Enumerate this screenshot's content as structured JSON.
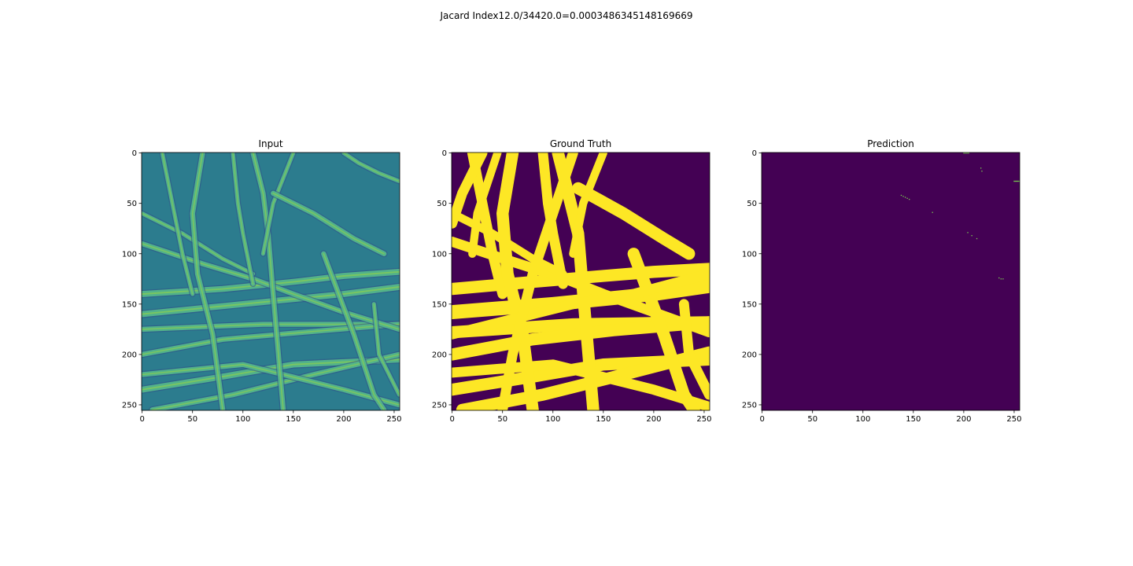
{
  "figure": {
    "suptitle": "Jacard Index12.0/34420.0=0.0003486345148169669"
  },
  "colormap": {
    "name": "viridis",
    "low": "#440154",
    "mid": "#21918c",
    "high": "#fde725"
  },
  "chart_data": [
    {
      "type": "heatmap",
      "title": "Input",
      "xlabel": "",
      "ylabel": "",
      "xlim": [
        0,
        255
      ],
      "ylim": [
        255,
        0
      ],
      "xticks": [
        0,
        50,
        100,
        150,
        200,
        250
      ],
      "yticks": [
        0,
        50,
        100,
        150,
        200,
        250
      ],
      "background": "#2c7c8e",
      "fibers": [
        {
          "points": [
            [
              0,
              140
            ],
            [
              80,
              135
            ],
            [
              150,
              128
            ],
            [
              200,
              122
            ],
            [
              255,
              118
            ]
          ],
          "width": 6
        },
        {
          "points": [
            [
              0,
              160
            ],
            [
              100,
              150
            ],
            [
              200,
              140
            ],
            [
              255,
              133
            ]
          ],
          "width": 6
        },
        {
          "points": [
            [
              0,
              175
            ],
            [
              120,
              170
            ],
            [
              255,
              170
            ]
          ],
          "width": 5
        },
        {
          "points": [
            [
              0,
              200
            ],
            [
              80,
              185
            ],
            [
              160,
              178
            ],
            [
              255,
              170
            ]
          ],
          "width": 5
        },
        {
          "points": [
            [
              0,
              235
            ],
            [
              80,
              222
            ],
            [
              150,
              210
            ],
            [
              255,
              205
            ]
          ],
          "width": 6
        },
        {
          "points": [
            [
              10,
              255
            ],
            [
              90,
              240
            ],
            [
              170,
              220
            ],
            [
              255,
              200
            ]
          ],
          "width": 5
        },
        {
          "points": [
            [
              0,
              220
            ],
            [
              100,
              210
            ],
            [
              200,
              235
            ],
            [
              255,
              250
            ]
          ],
          "width": 5
        },
        {
          "points": [
            [
              0,
              90
            ],
            [
              60,
              110
            ],
            [
              110,
              125
            ],
            [
              150,
              140
            ],
            [
              200,
              158
            ],
            [
              255,
              175
            ]
          ],
          "width": 5
        },
        {
          "points": [
            [
              0,
              60
            ],
            [
              40,
              80
            ],
            [
              80,
              105
            ],
            [
              110,
              120
            ]
          ],
          "width": 4
        },
        {
          "points": [
            [
              20,
              0
            ],
            [
              30,
              50
            ],
            [
              40,
              100
            ],
            [
              50,
              140
            ]
          ],
          "width": 4
        },
        {
          "points": [
            [
              60,
              0
            ],
            [
              50,
              60
            ],
            [
              55,
              120
            ],
            [
              70,
              180
            ],
            [
              80,
              255
            ]
          ],
          "width": 5
        },
        {
          "points": [
            [
              110,
              0
            ],
            [
              120,
              40
            ],
            [
              125,
              80
            ],
            [
              130,
              140
            ],
            [
              140,
              255
            ]
          ],
          "width": 5
        },
        {
          "points": [
            [
              150,
              0
            ],
            [
              130,
              50
            ],
            [
              120,
              100
            ]
          ],
          "width": 4
        },
        {
          "points": [
            [
              130,
              40
            ],
            [
              170,
              60
            ],
            [
              210,
              85
            ],
            [
              240,
              100
            ]
          ],
          "width": 5
        },
        {
          "points": [
            [
              180,
              100
            ],
            [
              210,
              180
            ],
            [
              230,
              240
            ],
            [
              240,
              255
            ]
          ],
          "width": 5
        },
        {
          "points": [
            [
              230,
              150
            ],
            [
              235,
              200
            ],
            [
              255,
              240
            ]
          ],
          "width": 4
        },
        {
          "points": [
            [
              90,
              0
            ],
            [
              95,
              50
            ],
            [
              100,
              80
            ],
            [
              110,
              130
            ]
          ],
          "width": 4
        },
        {
          "points": [
            [
              200,
              0
            ],
            [
              215,
              10
            ],
            [
              235,
              20
            ],
            [
              255,
              28
            ]
          ],
          "width": 4
        }
      ],
      "fiber_color": "#58c08a",
      "highlight_color": "#9fda3a"
    },
    {
      "type": "heatmap",
      "title": "Ground Truth",
      "xlabel": "",
      "ylabel": "",
      "xlim": [
        0,
        255
      ],
      "ylim": [
        255,
        0
      ],
      "xticks": [
        0,
        50,
        100,
        150,
        200,
        250
      ],
      "yticks": [
        0,
        50,
        100,
        150,
        200,
        250
      ],
      "background": "#440154",
      "foreground": "#fde725",
      "fibers": [
        {
          "points": [
            [
              0,
              135
            ],
            [
              80,
              128
            ],
            [
              150,
              122
            ],
            [
              200,
              118
            ],
            [
              255,
              115
            ]
          ],
          "width": 12
        },
        {
          "points": [
            [
              0,
              158
            ],
            [
              100,
              150
            ],
            [
              200,
              140
            ],
            [
              255,
              132
            ]
          ],
          "width": 14
        },
        {
          "points": [
            [
              0,
              178
            ],
            [
              120,
              170
            ],
            [
              255,
              168
            ]
          ],
          "width": 12
        },
        {
          "points": [
            [
              0,
              200
            ],
            [
              80,
              185
            ],
            [
              160,
              176
            ],
            [
              255,
              168
            ]
          ],
          "width": 12
        },
        {
          "points": [
            [
              0,
              235
            ],
            [
              80,
              222
            ],
            [
              150,
              210
            ],
            [
              255,
              205
            ]
          ],
          "width": 12
        },
        {
          "points": [
            [
              10,
              255
            ],
            [
              90,
              240
            ],
            [
              170,
              220
            ],
            [
              255,
              198
            ]
          ],
          "width": 12
        },
        {
          "points": [
            [
              0,
              218
            ],
            [
              100,
              210
            ],
            [
              200,
              235
            ],
            [
              255,
              252
            ]
          ],
          "width": 10
        },
        {
          "points": [
            [
              0,
              88
            ],
            [
              60,
              108
            ],
            [
              110,
              124
            ],
            [
              150,
              140
            ],
            [
              200,
              158
            ],
            [
              255,
              178
            ]
          ],
          "width": 10
        },
        {
          "points": [
            [
              0,
              60
            ],
            [
              40,
              80
            ],
            [
              80,
              105
            ],
            [
              110,
              120
            ]
          ],
          "width": 8
        },
        {
          "points": [
            [
              20,
              0
            ],
            [
              30,
              50
            ],
            [
              40,
              100
            ],
            [
              50,
              140
            ]
          ],
          "width": 10
        },
        {
          "points": [
            [
              60,
              0
            ],
            [
              50,
              60
            ],
            [
              55,
              120
            ],
            [
              70,
              180
            ],
            [
              80,
              255
            ]
          ],
          "width": 12
        },
        {
          "points": [
            [
              105,
              0
            ],
            [
              115,
              40
            ],
            [
              125,
              80
            ],
            [
              130,
              140
            ],
            [
              140,
              255
            ]
          ],
          "width": 12
        },
        {
          "points": [
            [
              150,
              0
            ],
            [
              130,
              50
            ],
            [
              120,
              100
            ]
          ],
          "width": 8
        },
        {
          "points": [
            [
              125,
              35
            ],
            [
              170,
              60
            ],
            [
              210,
              85
            ],
            [
              235,
              100
            ]
          ],
          "width": 12
        },
        {
          "points": [
            [
              180,
              100
            ],
            [
              210,
              180
            ],
            [
              230,
              240
            ],
            [
              240,
              255
            ]
          ],
          "width": 12
        },
        {
          "points": [
            [
              230,
              150
            ],
            [
              235,
              200
            ],
            [
              255,
              240
            ]
          ],
          "width": 10
        },
        {
          "points": [
            [
              90,
              0
            ],
            [
              95,
              50
            ],
            [
              100,
              80
            ],
            [
              110,
              130
            ]
          ],
          "width": 10
        },
        {
          "points": [
            [
              30,
              0
            ],
            [
              10,
              40
            ],
            [
              0,
              70
            ]
          ],
          "width": 10
        },
        {
          "points": [
            [
              45,
              0
            ],
            [
              25,
              60
            ],
            [
              20,
              100
            ]
          ],
          "width": 8
        },
        {
          "points": [
            [
              0,
              180
            ],
            [
              60,
              165
            ],
            [
              120,
              150
            ],
            [
              180,
              140
            ],
            [
              255,
              120
            ]
          ],
          "width": 10
        },
        {
          "points": [
            [
              120,
              0
            ],
            [
              100,
              60
            ],
            [
              80,
              120
            ],
            [
              60,
              200
            ],
            [
              50,
              255
            ]
          ],
          "width": 10
        }
      ]
    },
    {
      "type": "heatmap",
      "title": "Prediction",
      "xlabel": "",
      "ylabel": "",
      "xlim": [
        0,
        255
      ],
      "ylim": [
        255,
        0
      ],
      "xticks": [
        0,
        50,
        100,
        150,
        200,
        250
      ],
      "yticks": [
        0,
        50,
        100,
        150,
        200,
        250
      ],
      "background": "#440154",
      "positive_color": "#7ad151",
      "positive_pixels": [
        [
          200,
          0
        ],
        [
          201,
          0
        ],
        [
          202,
          0
        ],
        [
          203,
          0
        ],
        [
          204,
          0
        ],
        [
          205,
          0
        ],
        [
          217,
          15
        ],
        [
          218,
          18
        ],
        [
          138,
          42
        ],
        [
          140,
          43
        ],
        [
          142,
          44
        ],
        [
          144,
          45
        ],
        [
          146,
          46
        ],
        [
          169,
          59
        ],
        [
          204,
          79
        ],
        [
          208,
          82
        ],
        [
          213,
          85
        ],
        [
          235,
          124
        ],
        [
          237,
          125
        ],
        [
          239,
          125
        ],
        [
          250,
          28
        ],
        [
          251,
          28
        ],
        [
          252,
          28
        ],
        [
          253,
          28
        ],
        [
          254,
          28
        ],
        [
          255,
          28
        ]
      ]
    }
  ]
}
